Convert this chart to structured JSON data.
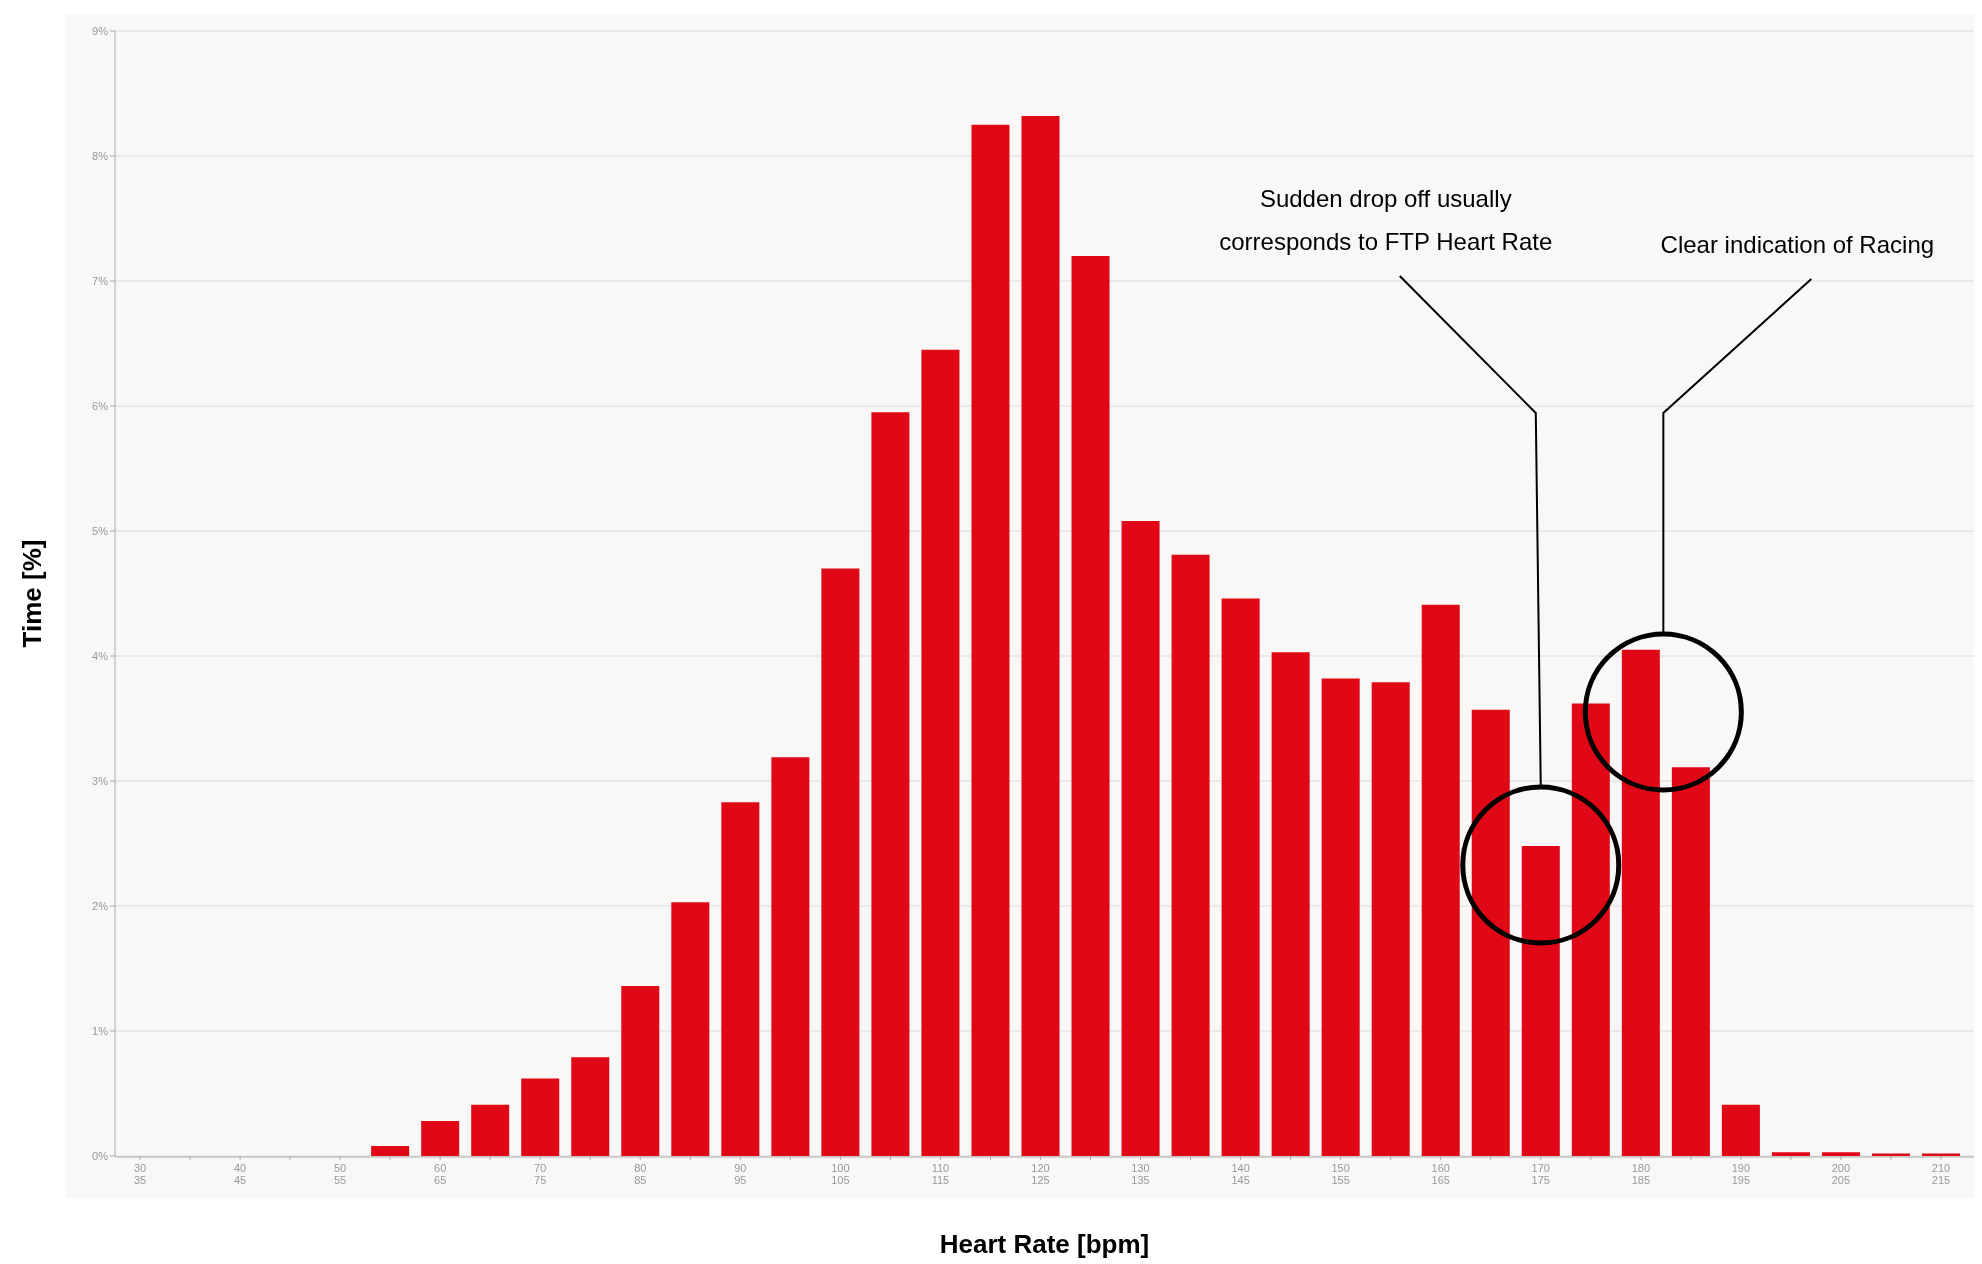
{
  "chart_data": {
    "type": "bar",
    "xlabel": "Heart Rate [bpm]",
    "ylabel": "Time [%]",
    "categories": [
      "30\n35",
      null,
      "40\n45",
      null,
      "50\n55",
      null,
      "60\n65",
      null,
      "70\n75",
      null,
      "80\n85",
      null,
      "90\n95",
      null,
      "100\n105",
      null,
      "110\n115",
      null,
      "120\n125",
      null,
      "130\n135",
      null,
      "140\n145",
      null,
      "150\n155",
      null,
      "160\n165",
      null,
      "170\n175",
      null,
      "180\n185",
      null,
      "190\n195",
      null,
      "200\n205",
      null,
      "210\n215"
    ],
    "values": [
      0,
      0,
      0,
      0,
      0,
      0.08,
      0.28,
      0.41,
      0.62,
      0.79,
      1.36,
      2.03,
      2.83,
      3.19,
      4.7,
      5.95,
      6.45,
      8.25,
      8.32,
      7.2,
      5.08,
      4.81,
      4.46,
      4.03,
      3.82,
      3.79,
      4.41,
      3.57,
      2.48,
      3.62,
      4.05,
      3.11,
      0.41,
      0.03,
      0.03,
      0.02,
      0.02
    ],
    "color": "#e00716",
    "ylim": [
      0,
      9
    ],
    "yticks": [
      {
        "value": 0,
        "label": "0%"
      },
      {
        "value": 1,
        "label": "1%"
      },
      {
        "value": 2,
        "label": "2%"
      },
      {
        "value": 3,
        "label": "3%"
      },
      {
        "value": 4,
        "label": "4%"
      },
      {
        "value": 5,
        "label": "5%"
      },
      {
        "value": 6,
        "label": "6%"
      },
      {
        "value": 7,
        "label": "7%"
      },
      {
        "value": 8,
        "label": "8%"
      },
      {
        "value": 9,
        "label": "9%"
      }
    ],
    "grid": "y",
    "annotations": [
      "Sudden drop off usually\ncorresponds to FTP Heart Rate",
      "Clear indication of Racing"
    ]
  }
}
